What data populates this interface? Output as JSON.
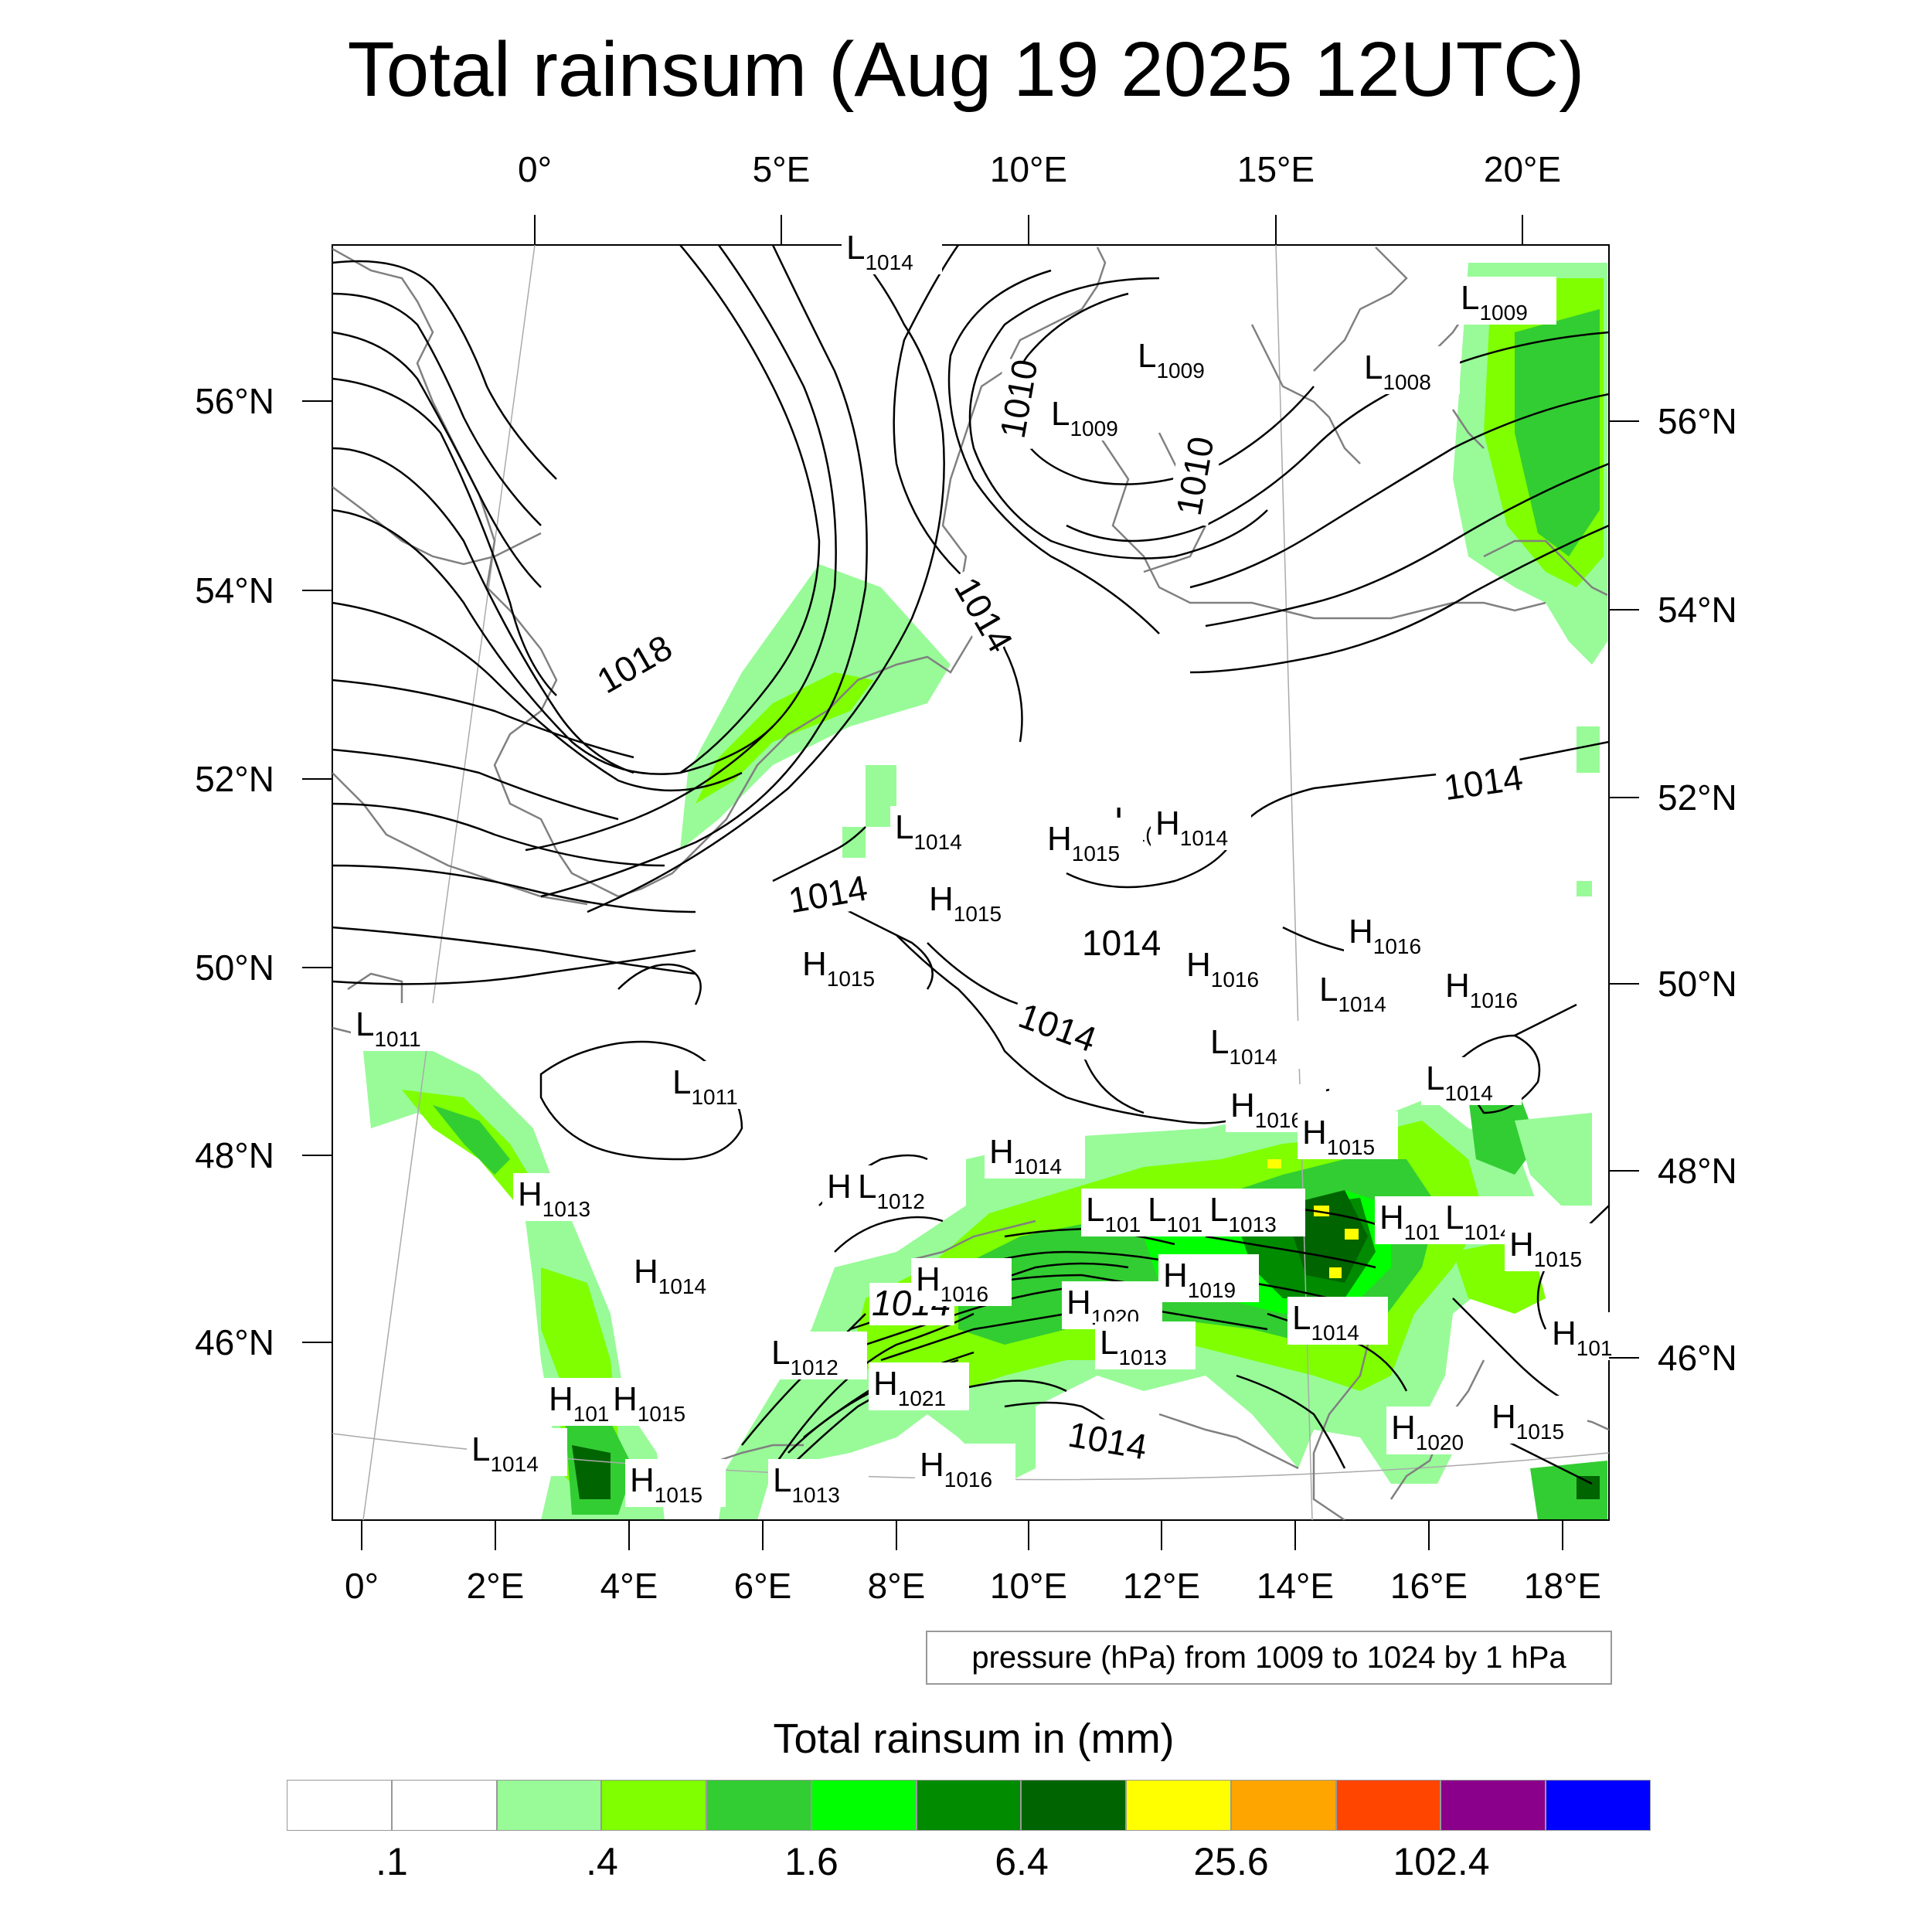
{
  "title": "Total rainsum (Aug 19 2025 12UTC)",
  "top_lon_labels": [
    "0°",
    "5°E",
    "10°E",
    "15°E",
    "20°E"
  ],
  "bottom_lon_labels": [
    "0°",
    "2°E",
    "4°E",
    "6°E",
    "8°E",
    "10°E",
    "12°E",
    "14°E",
    "16°E",
    "18°E"
  ],
  "left_lat_labels": [
    "56°N",
    "54°N",
    "52°N",
    "50°N",
    "48°N",
    "46°N"
  ],
  "right_lat_labels": [
    "56°N",
    "54°N",
    "52°N",
    "50°N",
    "48°N",
    "46°N"
  ],
  "isobar_labels": [
    "1018",
    "1014",
    "1014",
    "1014",
    "1014",
    "1014",
    "1014",
    "1010",
    "1010",
    "1014"
  ],
  "pressure_systems": [
    {
      "type": "L",
      "value": "1014"
    },
    {
      "type": "L",
      "value": "1009"
    },
    {
      "type": "L",
      "value": "1008"
    },
    {
      "type": "L",
      "value": "1009"
    },
    {
      "type": "L",
      "value": "1009"
    },
    {
      "type": "L",
      "value": "1014"
    },
    {
      "type": "L",
      "value": "1("
    },
    {
      "type": "H",
      "value": "1014"
    },
    {
      "type": "H",
      "value": "1015"
    },
    {
      "type": "H",
      "value": "1015"
    },
    {
      "type": "H",
      "value": "1015"
    },
    {
      "type": "H",
      "value": "1016"
    },
    {
      "type": "H",
      "value": "1016"
    },
    {
      "type": "H",
      "value": "1016"
    },
    {
      "type": "L",
      "value": "1014"
    },
    {
      "type": "L",
      "value": "1014"
    },
    {
      "type": "L",
      "value": "1011"
    },
    {
      "type": "L",
      "value": "1011"
    },
    {
      "type": "L",
      "value": "1014"
    },
    {
      "type": "H",
      "value": "1016"
    },
    {
      "type": "H",
      "value": "1015"
    },
    {
      "type": "H",
      "value": "1014"
    },
    {
      "type": "H",
      "value": "1013"
    },
    {
      "type": "H",
      "value": ""
    },
    {
      "type": "L",
      "value": "1012"
    },
    {
      "type": "L",
      "value": "101"
    },
    {
      "type": "L",
      "value": "101"
    },
    {
      "type": "L",
      "value": "1013"
    },
    {
      "type": "H",
      "value": "101"
    },
    {
      "type": "L",
      "value": "1014"
    },
    {
      "type": "H",
      "value": "1014"
    },
    {
      "type": "H",
      "value": "1019"
    },
    {
      "type": "H",
      "value": "1020"
    },
    {
      "type": "L",
      "value": "1013"
    },
    {
      "type": "L",
      "value": "1014"
    },
    {
      "type": "H",
      "value": "1015"
    },
    {
      "type": "L",
      "value": "1012"
    },
    {
      "type": "H",
      "value": "1021"
    },
    {
      "type": "H",
      "value": "101"
    },
    {
      "type": "H",
      "value": "1015"
    },
    {
      "type": "L",
      "value": "1014"
    },
    {
      "type": "H",
      "value": "1015"
    },
    {
      "type": "H",
      "value": "1020"
    },
    {
      "type": "L",
      "value": "1013"
    },
    {
      "type": "H",
      "value": "1016"
    },
    {
      "type": "H",
      "value": "1015"
    },
    {
      "type": "H",
      "value": "1016"
    },
    {
      "type": "H",
      "value": "101"
    }
  ],
  "legend_note": "pressure (hPa) from 1009 to 1024 by 1 hPa",
  "colorbar": {
    "title": "Total rainsum in (mm)",
    "colors": [
      "#ffffff",
      "#ffffff",
      "#98fb98",
      "#7fff00",
      "#32cd32",
      "#00ff00",
      "#008b00",
      "#006400",
      "#ffff00",
      "#ffa500",
      "#ff4500",
      "#8b008b",
      "#0000ff"
    ],
    "labels": [
      ".1",
      ".4",
      "1.6",
      "6.4",
      "25.6",
      "102.4"
    ]
  }
}
